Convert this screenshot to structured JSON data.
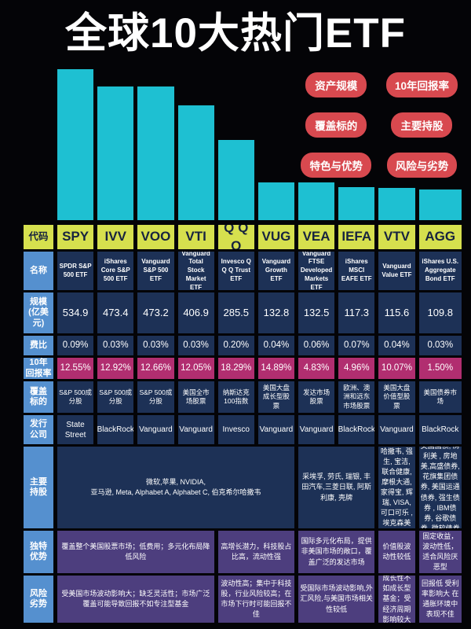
{
  "title": "全球10大热门ETF",
  "badges": [
    "资产规模",
    "10年回报率",
    "覆盖标的",
    "主要持股",
    "特色与优势",
    "风险与劣势"
  ],
  "colors": {
    "background": "#040407",
    "bar_cyan": "#1ec0d2",
    "badge_red": "#d8494f",
    "code_yellow": "#d6e04e",
    "label_blue": "#5590cf",
    "cell_navy": "#1d3156",
    "return_magenta": "#b12e70",
    "cell_purple": "#4d3e7e",
    "title_white": "#ffffff"
  },
  "chart_data": {
    "type": "bar",
    "title": "全球10大热门ETF 资产规模（亿美元）",
    "categories": [
      "SPY",
      "IVV",
      "VOO",
      "VTI",
      "QQQ",
      "VUG",
      "VEA",
      "IEFA",
      "VTV",
      "AGG"
    ],
    "values": [
      534.9,
      473.4,
      473.2,
      406.9,
      285.5,
      132.8,
      132.5,
      117.3,
      115.6,
      109.8
    ],
    "xlabel": "",
    "ylabel": "规模(亿美元)",
    "ylim": [
      0,
      534.9
    ],
    "grid": false,
    "legend": false,
    "bar_color": "#1ec0d2"
  },
  "table": {
    "labels": {
      "code": "代码",
      "name": "名称",
      "aum": "规模\n(亿美\n元)",
      "expense": "费比",
      "return": "10年\n回报率",
      "coverage": "覆盖\n标的",
      "issuer": "发行\n公司",
      "holdings": "主要\n持股",
      "advantage": "独特\n优势",
      "risk": "风险\n劣势"
    },
    "codes": [
      "SPY",
      "IVV",
      "VOO",
      "VTI",
      "Q Q Q",
      "VUG",
      "VEA",
      "IEFA",
      "VTV",
      "AGG"
    ],
    "names": [
      "SPDR S&P 500 ETF",
      "iShares Core S&P 500 ETF",
      "Vanguard S&P 500 ETF",
      "Vanguard Total Stock Market ETF",
      "Invesco Q Q Q Trust ETF",
      "Vanguard Growth ETF",
      "Vanguard FTSE Developed Markets ETF",
      "iShares MSCI EAFE ETF",
      "Vanguard Value ETF",
      "iShares U.S. Aggregate Bond ETF"
    ],
    "aum": [
      "534.9",
      "473.4",
      "473.2",
      "406.9",
      "285.5",
      "132.8",
      "132.5",
      "117.3",
      "115.6",
      "109.8"
    ],
    "expense": [
      "0.09%",
      "0.03%",
      "0.03%",
      "0.03%",
      "0.20%",
      "0.04%",
      "0.06%",
      "0.07%",
      "0.04%",
      "0.03%"
    ],
    "returns": [
      "12.55%",
      "12.92%",
      "12.66%",
      "12.05%",
      "18.29%",
      "14.89%",
      "4.83%",
      "4.96%",
      "10.07%",
      "1.50%"
    ],
    "coverage": [
      "S&P 500成分股",
      "S&P 500成分股",
      "S&P 500成分股",
      "美国全市场股票",
      "纳斯达克100指数",
      "美国大盘成长型股票",
      "发达市场股票",
      "欧洲、澳洲和远东市场股票",
      "美国大盘价值型股票",
      "美国债券市场"
    ],
    "issuers": [
      "State Street",
      "BlackRock",
      "Vanguard",
      "Vanguard",
      "Invesco",
      "Vanguard",
      "Vanguard",
      "BlackRock",
      "Vanguard",
      "BlackRock"
    ],
    "holdings": [
      {
        "span": 6,
        "text": "微软,苹果, NVIDIA,\n亚马逊, Meta, Alphabet A, Alphabet C, 伯克希尔哈撒韦"
      },
      {
        "span": 2,
        "text": "采埃孚, 劳氏, 瑞银, 丰田汽车,三菱日联, 阿斯利康, 壳牌"
      },
      {
        "span": 1,
        "text": "伯克希尔哈撒韦, 强生, 宝洁, 联合健康, 摩根大通, 家得宝, 辉瑞, VISA, 可口可乐 , 埃克森美孚"
      },
      {
        "span": 1,
        "text": "美国国债, 房利美 , 房地美,高盛债券, 花旗集团债券, 美国运通债券, 强生债券 , IBM债券, 谷歌债券, 微软债券"
      }
    ],
    "advantages": [
      {
        "span": 4,
        "text": "覆盖整个美国股票市场；低费用；多元化布局降低风险"
      },
      {
        "span": 2,
        "text": "高增长潜力，科技股占比高，流动性强"
      },
      {
        "span": 2,
        "text": "国际多元化布局，提供非美国市场的敞口，覆盖广泛的发达市场"
      },
      {
        "span": 1,
        "text": "价值股波动性较低"
      },
      {
        "span": 1,
        "text": "固定收益，波动性低，适合风险厌恶型"
      }
    ],
    "risks": [
      {
        "span": 4,
        "text": "受美国市场波动影响大；缺乏灵活性；市场广泛覆盖可能导致回报不如专注型基金"
      },
      {
        "span": 2,
        "text": "波动性高；集中于科技股，行业风险较高；在市场下行时可能回报不佳"
      },
      {
        "span": 2,
        "text": "受国际市场波动影响,外汇风险,与美国市场相关性较低"
      },
      {
        "span": 1,
        "text": "成长性不如成长型基金；受经济周期影响较大"
      },
      {
        "span": 1,
        "text": "回报低 受利率影响大 在通胀环境中表现不佳"
      }
    ]
  }
}
